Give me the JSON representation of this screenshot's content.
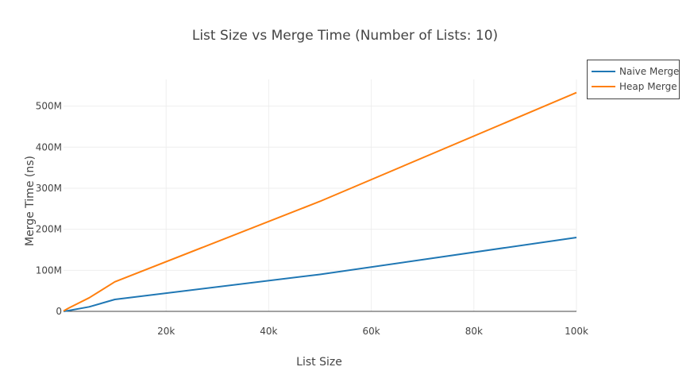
{
  "chart_data": {
    "type": "line",
    "title": "List Size vs Merge Time (Number of Lists: 10)",
    "xlabel": "List Size",
    "ylabel": "Merge Time (ns)",
    "xlim": [
      0,
      100000
    ],
    "ylim": [
      0,
      565000000
    ],
    "x_ticks": [
      {
        "value": 20000,
        "label": "20k"
      },
      {
        "value": 40000,
        "label": "40k"
      },
      {
        "value": 60000,
        "label": "60k"
      },
      {
        "value": 80000,
        "label": "80k"
      },
      {
        "value": 100000,
        "label": "100k"
      }
    ],
    "y_ticks": [
      {
        "value": 0,
        "label": "0"
      },
      {
        "value": 100000000,
        "label": "100M"
      },
      {
        "value": 200000000,
        "label": "200M"
      },
      {
        "value": 300000000,
        "label": "300M"
      },
      {
        "value": 400000000,
        "label": "400M"
      },
      {
        "value": 500000000,
        "label": "500M"
      }
    ],
    "grid": true,
    "legend_position": "top-right",
    "series": [
      {
        "name": "Naive Merge",
        "color": "#1f77b4",
        "x": [
          0,
          1000,
          5000,
          10000,
          50000,
          100000
        ],
        "y": [
          0,
          2000000,
          11000000,
          29000000,
          90000000,
          180000000
        ]
      },
      {
        "name": "Heap Merge",
        "color": "#ff7f0e",
        "x": [
          0,
          1000,
          5000,
          10000,
          50000,
          100000
        ],
        "y": [
          1000000,
          8000000,
          33000000,
          72000000,
          268000000,
          533000000
        ]
      }
    ]
  }
}
